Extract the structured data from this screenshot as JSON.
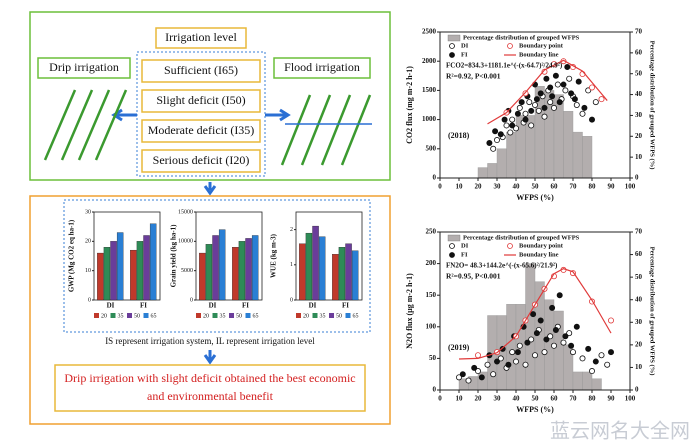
{
  "diagram": {
    "irrigation_level": "Irrigation level",
    "levels": [
      "Sufficient (I65)",
      "Slight deficit (I50)",
      "Moderate deficit (I35)",
      "Serious deficit (I20)"
    ],
    "drip": "Drip irrigation",
    "flood": "Flood irrigation",
    "note": "IS represent irrigation system, IL represent irrigation level",
    "conclusion": [
      "Drip irrigation with slight deficit obtained the best economic",
      "and environmental benefit"
    ],
    "watermark": "蓝云网名大全网"
  },
  "chart_data": [
    {
      "type": "bar",
      "ylabel": "GWP (Mg CO2 eq ha-1)",
      "categories": [
        "DI",
        "FI"
      ],
      "ylim": [
        0,
        30
      ],
      "yticks": [
        0,
        10,
        20,
        30
      ],
      "series": [
        {
          "name": "20",
          "color": "#c0392b",
          "values": [
            16,
            17
          ]
        },
        {
          "name": "35",
          "color": "#2e8b57",
          "values": [
            18,
            20
          ]
        },
        {
          "name": "50",
          "color": "#6a3d9a",
          "values": [
            20,
            22
          ]
        },
        {
          "name": "65",
          "color": "#2a7fd4",
          "values": [
            23,
            26
          ]
        }
      ]
    },
    {
      "type": "bar",
      "ylabel": "Grain yield (kg ha-1)",
      "categories": [
        "DI",
        "FI"
      ],
      "ylim": [
        0,
        15000
      ],
      "yticks": [
        0,
        5000,
        10000,
        15000
      ],
      "series": [
        {
          "name": "20",
          "color": "#c0392b",
          "values": [
            8000,
            9000
          ]
        },
        {
          "name": "35",
          "color": "#2e8b57",
          "values": [
            9500,
            10000
          ]
        },
        {
          "name": "50",
          "color": "#6a3d9a",
          "values": [
            11000,
            10500
          ]
        },
        {
          "name": "65",
          "color": "#2a7fd4",
          "values": [
            12000,
            11000
          ]
        }
      ]
    },
    {
      "type": "bar",
      "ylabel": "WUE (kg m-3)",
      "categories": [
        "DI",
        "FI"
      ],
      "ylim": [
        0,
        2.5
      ],
      "yticks": [
        0,
        1,
        2
      ],
      "series": [
        {
          "name": "20",
          "color": "#c0392b",
          "values": [
            1.6,
            1.3
          ]
        },
        {
          "name": "35",
          "color": "#2e8b57",
          "values": [
            1.9,
            1.5
          ]
        },
        {
          "name": "50",
          "color": "#6a3d9a",
          "values": [
            2.1,
            1.6
          ]
        },
        {
          "name": "65",
          "color": "#2a7fd4",
          "values": [
            1.8,
            1.4
          ]
        }
      ]
    },
    {
      "type": "scatter",
      "xlabel": "WFPS (%)",
      "ylabel": "CO2 flux (mg m-2 h-1)",
      "y2label": "Percentage distribution of grouped WFPS (%)",
      "year": "(2018)",
      "equation": "FCO2=834.3+1181.1e^(-(x-64.7)²/24.9²)",
      "r2": "R²=0.92, P<0.001",
      "xlim": [
        0,
        100
      ],
      "xticks": [
        0,
        10,
        20,
        30,
        40,
        50,
        60,
        70,
        80,
        90,
        100
      ],
      "ylim": [
        0,
        2500
      ],
      "yticks": [
        0,
        500,
        1000,
        1500,
        2000,
        2500
      ],
      "y2lim": [
        0,
        70
      ],
      "y2ticks": [
        0,
        10,
        20,
        30,
        40,
        50,
        60,
        70
      ],
      "histogram": {
        "name": "Percentage distribution of grouped WFPS",
        "color": "#b3aeae",
        "axis": "y2",
        "bins": [
          20,
          25,
          30,
          35,
          40,
          45,
          50,
          55,
          60,
          65,
          70,
          75,
          80
        ],
        "values": [
          5,
          7,
          14,
          22,
          30,
          30,
          44,
          42,
          40,
          32,
          22,
          20
        ]
      },
      "series": [
        {
          "name": "DI",
          "marker": "circle-open",
          "color": "#111111",
          "x": [
            28,
            30,
            33,
            35,
            37,
            38,
            40,
            42,
            44,
            45,
            47,
            48,
            50,
            52,
            54,
            55,
            57,
            58,
            60,
            62,
            64,
            66,
            68,
            70,
            72,
            75,
            78,
            82
          ],
          "values": [
            500,
            650,
            700,
            900,
            780,
            1000,
            850,
            1200,
            950,
            1100,
            1300,
            900,
            1250,
            1150,
            1400,
            1050,
            1500,
            1300,
            1200,
            1600,
            1350,
            1500,
            1700,
            1400,
            1250,
            1100,
            1500,
            1300
          ]
        },
        {
          "name": "FI",
          "marker": "circle-filled",
          "color": "#111111",
          "x": [
            26,
            29,
            32,
            34,
            36,
            38,
            41,
            43,
            45,
            46,
            48,
            50,
            51,
            53,
            55,
            56,
            58,
            59,
            61,
            63,
            65,
            67,
            69,
            71,
            73,
            76,
            80
          ],
          "values": [
            600,
            800,
            750,
            1000,
            1150,
            900,
            1100,
            1300,
            1000,
            1400,
            1150,
            1600,
            1350,
            1450,
            1200,
            1700,
            1550,
            1400,
            1750,
            1300,
            1600,
            1900,
            1450,
            1350,
            1650,
            1200,
            1000
          ]
        },
        {
          "name": "Boundary point",
          "marker": "circle-open",
          "color": "#e03a3a",
          "x": [
            35,
            45,
            55,
            60,
            65,
            70,
            75,
            80,
            85
          ],
          "values": [
            1120,
            1450,
            1820,
            1950,
            2000,
            1900,
            1780,
            1550,
            1350
          ]
        },
        {
          "name": "Boundary line",
          "marker": "line",
          "color": "#e03a3a",
          "x": [
            25,
            35,
            45,
            55,
            65,
            75,
            85,
            88
          ],
          "values": [
            927,
            1119,
            1466,
            1849,
            2015,
            1830,
            1442,
            1326
          ]
        }
      ]
    },
    {
      "type": "scatter",
      "xlabel": "WFPS (%)",
      "ylabel": "N2O flux (μg m-2 h-1)",
      "y2label": "Percentage distribution of grouped WFPS (%)",
      "year": "(2019)",
      "equation": "FN2O= 48.3+144.2e^(-(x-65.6)²/21.9²)",
      "r2": "R²=0.95, P<0.001",
      "xlim": [
        0,
        100
      ],
      "xticks": [
        0,
        10,
        20,
        30,
        40,
        50,
        60,
        70,
        80,
        90,
        100
      ],
      "ylim": [
        0,
        250
      ],
      "yticks": [
        0,
        50,
        100,
        150,
        200,
        250
      ],
      "y2lim": [
        0,
        70
      ],
      "y2ticks": [
        0,
        10,
        20,
        30,
        40,
        50,
        60,
        70
      ],
      "histogram": {
        "name": "Percentage distribution of grouped WFPS",
        "color": "#b3aeae",
        "axis": "y2",
        "bins": [
          10,
          15,
          20,
          25,
          30,
          35,
          40,
          45,
          50,
          55,
          60,
          65,
          70,
          75,
          80,
          85
        ],
        "values": [
          5,
          6,
          8,
          33,
          33,
          38,
          38,
          56,
          48,
          40,
          35,
          20,
          8,
          8,
          5
        ]
      },
      "series": [
        {
          "name": "DI",
          "marker": "circle-open",
          "color": "#111111",
          "x": [
            10,
            15,
            20,
            25,
            28,
            32,
            35,
            38,
            40,
            42,
            45,
            48,
            50,
            52,
            55,
            58,
            60,
            62,
            65,
            68,
            70,
            75,
            80,
            85,
            88
          ],
          "values": [
            20,
            15,
            30,
            40,
            25,
            50,
            35,
            60,
            45,
            70,
            40,
            80,
            55,
            95,
            60,
            85,
            70,
            100,
            75,
            90,
            60,
            50,
            30,
            55,
            40
          ]
        },
        {
          "name": "FI",
          "marker": "circle-filled",
          "color": "#111111",
          "x": [
            12,
            18,
            22,
            26,
            30,
            33,
            36,
            39,
            41,
            44,
            46,
            49,
            51,
            53,
            56,
            59,
            61,
            63,
            66,
            69,
            72,
            78,
            82,
            90
          ],
          "values": [
            25,
            35,
            20,
            55,
            45,
            65,
            40,
            85,
            60,
            100,
            75,
            120,
            90,
            110,
            80,
            130,
            95,
            150,
            85,
            70,
            100,
            65,
            45,
            60
          ]
        },
        {
          "name": "Boundary point",
          "marker": "circle-open",
          "color": "#e03a3a",
          "x": [
            20,
            30,
            40,
            45,
            50,
            55,
            60,
            65,
            70,
            80,
            90
          ],
          "values": [
            55,
            60,
            85,
            110,
            135,
            160,
            180,
            190,
            185,
            140,
            110
          ]
        },
        {
          "name": "Boundary line",
          "marker": "line",
          "color": "#e03a3a",
          "x": [
            10,
            20,
            30,
            40,
            50,
            60,
            65,
            70,
            80,
            90
          ],
          "values": [
            49,
            50,
            59,
            85,
            135,
            184,
            192,
            187,
            142,
            90
          ]
        }
      ]
    }
  ]
}
